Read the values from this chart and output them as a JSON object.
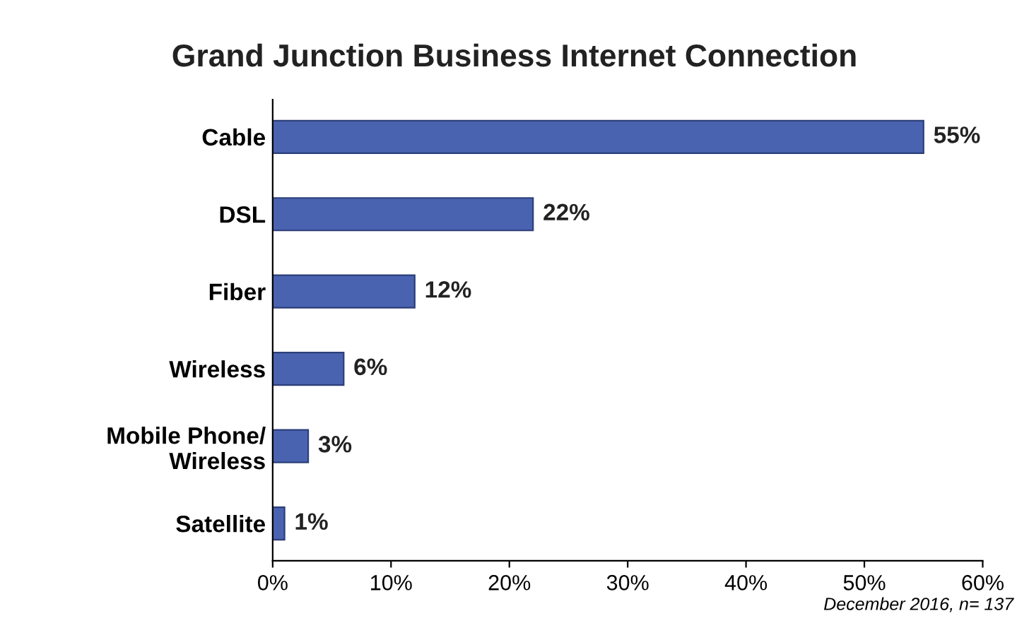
{
  "chart_data": {
    "type": "bar",
    "orientation": "horizontal",
    "title": "Grand Junction Business Internet Connection",
    "categories": [
      "Cable",
      "DSL",
      "Fiber",
      "Wireless",
      "Mobile Phone/\nWireless",
      "Satellite"
    ],
    "values": [
      55,
      22,
      12,
      6,
      3,
      1
    ],
    "value_labels": [
      "55%",
      "22%",
      "12%",
      "6%",
      "3%",
      "1%"
    ],
    "color": "#4a63b0",
    "xlim": [
      0,
      60
    ],
    "xticks": [
      {
        "value": 0,
        "label": "0%"
      },
      {
        "value": 10,
        "label": "10%"
      },
      {
        "value": 20,
        "label": "20%"
      },
      {
        "value": 30,
        "label": "30%"
      },
      {
        "value": 40,
        "label": "40%"
      },
      {
        "value": 50,
        "label": "50%"
      },
      {
        "value": 60,
        "label": "60%"
      }
    ],
    "grid": false,
    "annotations": [
      "December 2016, n= 137"
    ]
  }
}
